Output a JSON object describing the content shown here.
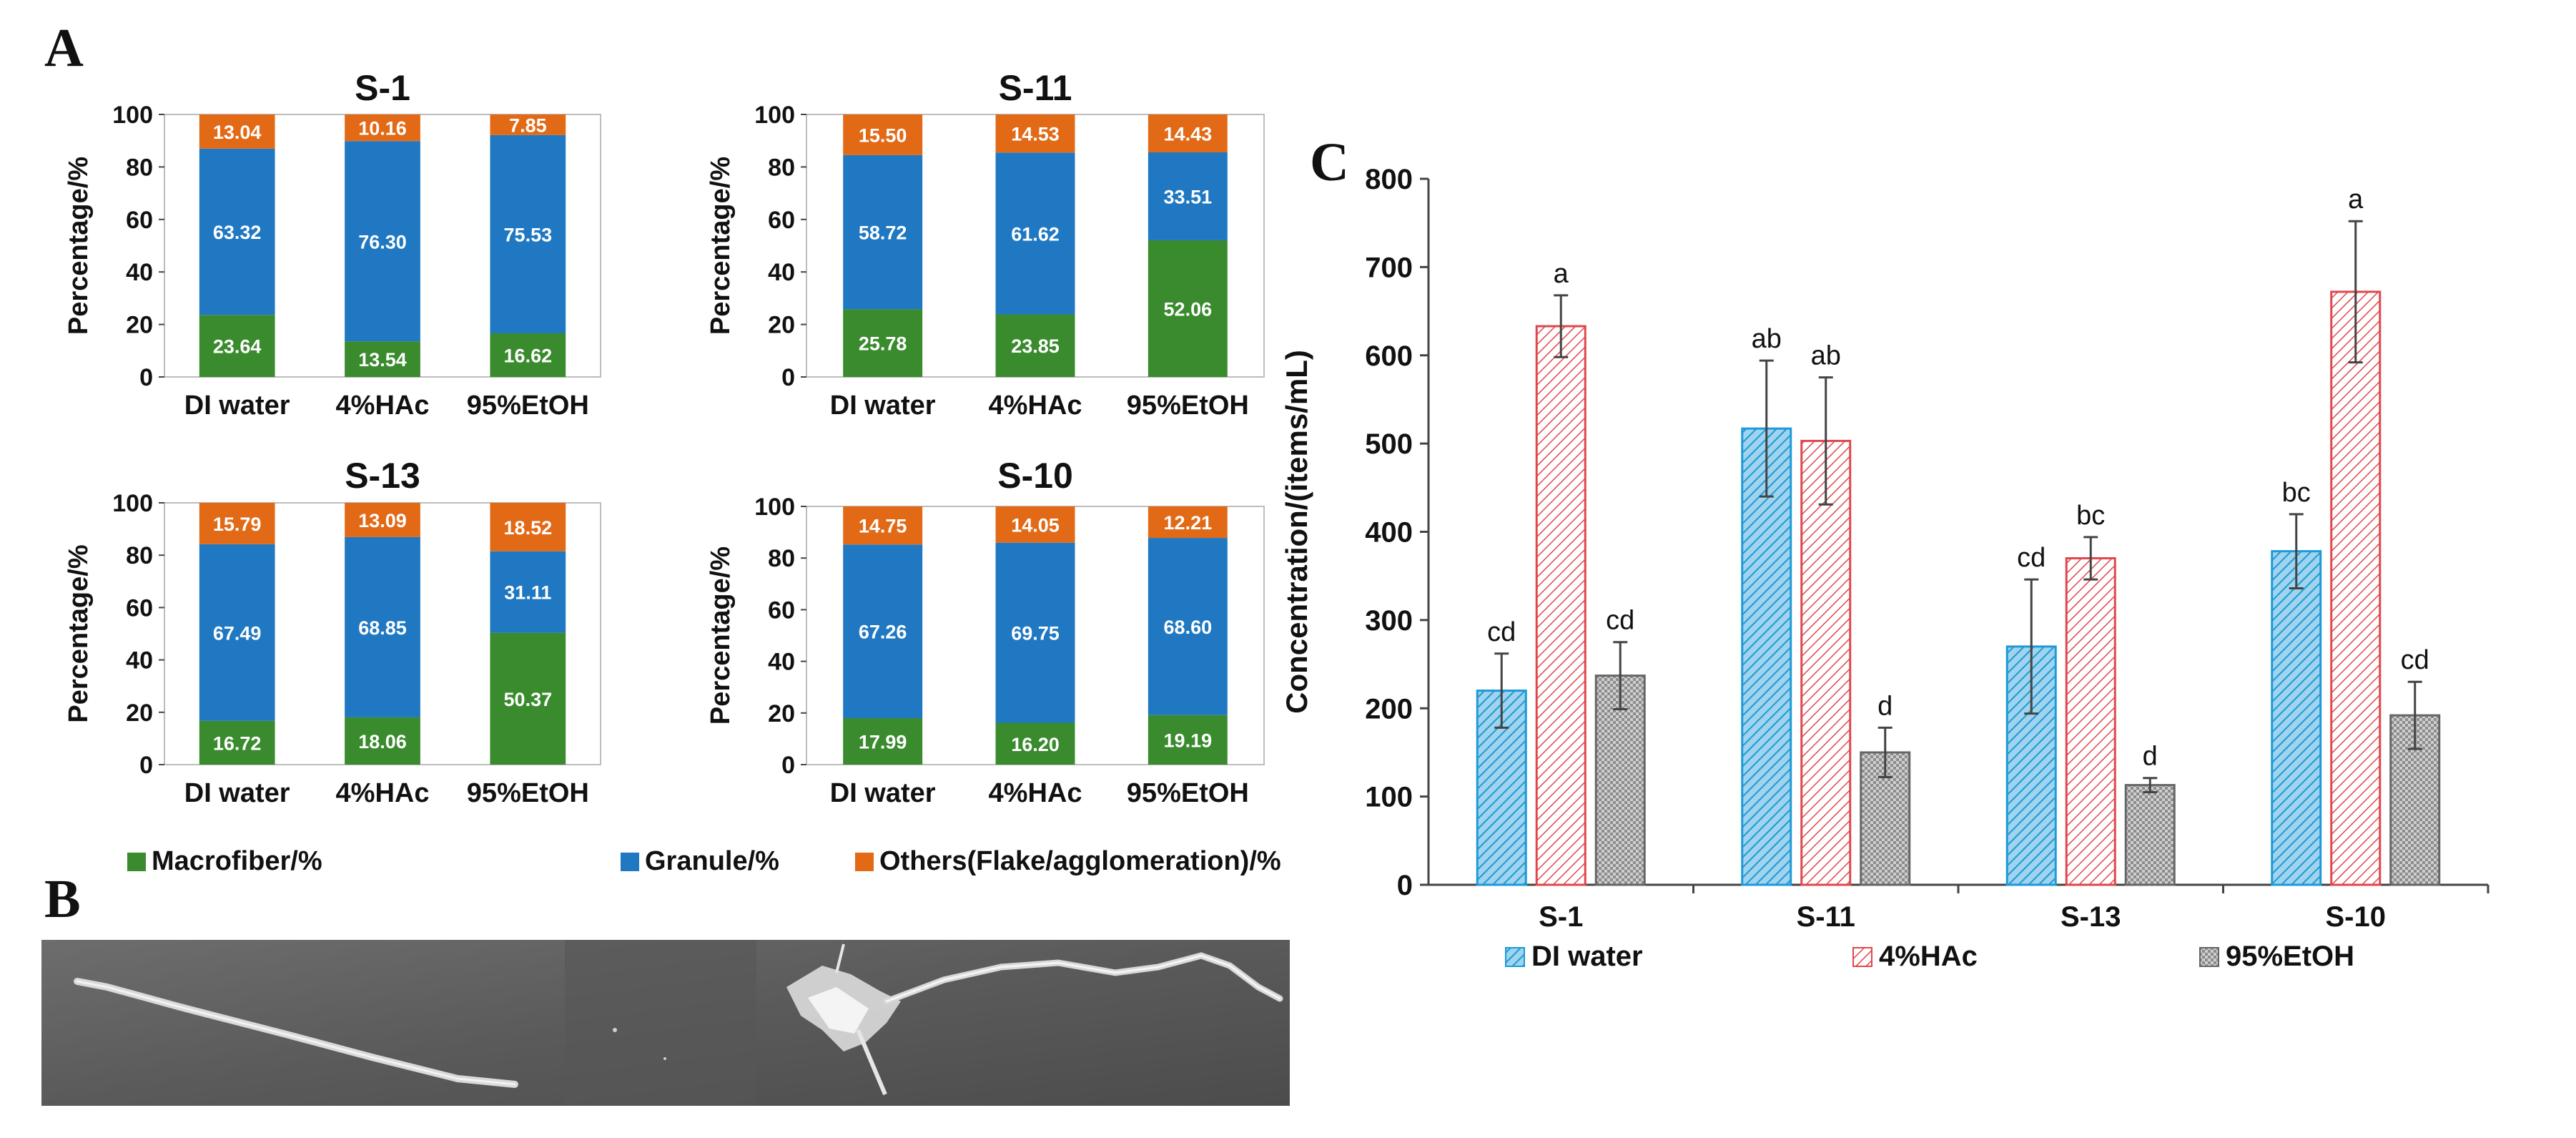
{
  "panels": {
    "a_label": "A",
    "b_label": "B",
    "c_label": "C"
  },
  "colors": {
    "macrofiber": "#3a8a2e",
    "granule": "#1f78c1",
    "others": "#e26a17",
    "di_water": "#1e9ad6",
    "hac": "#e0474c",
    "etoh": "#8c8c8c",
    "error_bar": "#444444"
  },
  "legend_a": {
    "items": [
      "Macrofiber/%",
      "Granule/%",
      "Others(Flake/agglomeration)/%"
    ]
  },
  "legend_c": {
    "items": [
      "DI water",
      "4%HAc",
      "95%EtOH"
    ]
  },
  "chart_data": [
    {
      "type": "bar",
      "stacked": true,
      "title": "S-1",
      "ylabel": "Percentage/%",
      "ylim": [
        0,
        100
      ],
      "yticks": [
        "0",
        "20",
        "40",
        "60",
        "80",
        "100"
      ],
      "categories": [
        "DI water",
        "4%HAc",
        "95%EtOH"
      ],
      "series": [
        {
          "name": "Macrofiber/%",
          "values": [
            23.64,
            13.54,
            16.62
          ],
          "labels": [
            "23.64",
            "13.54",
            "16.62"
          ]
        },
        {
          "name": "Granule/%",
          "values": [
            63.32,
            76.3,
            75.53
          ],
          "labels": [
            "63.32",
            "76.30",
            "75.53"
          ]
        },
        {
          "name": "Others(Flake/agglomeration)/%",
          "values": [
            13.04,
            10.16,
            7.85
          ],
          "labels": [
            "13.04",
            "10.16",
            "7.85"
          ]
        }
      ]
    },
    {
      "type": "bar",
      "stacked": true,
      "title": "S-11",
      "ylabel": "Percentage/%",
      "ylim": [
        0,
        100
      ],
      "yticks": [
        "0",
        "20",
        "40",
        "60",
        "80",
        "100"
      ],
      "categories": [
        "DI water",
        "4%HAc",
        "95%EtOH"
      ],
      "series": [
        {
          "name": "Macrofiber/%",
          "values": [
            25.78,
            23.85,
            52.06
          ],
          "labels": [
            "25.78",
            "23.85",
            "52.06"
          ]
        },
        {
          "name": "Granule/%",
          "values": [
            58.72,
            61.62,
            33.51
          ],
          "labels": [
            "58.72",
            "61.62",
            "33.51"
          ]
        },
        {
          "name": "Others(Flake/agglomeration)/%",
          "values": [
            15.5,
            14.53,
            14.43
          ],
          "labels": [
            "15.50",
            "14.53",
            "14.43"
          ]
        }
      ]
    },
    {
      "type": "bar",
      "stacked": true,
      "title": "S-13",
      "ylabel": "Percentage/%",
      "ylim": [
        0,
        100
      ],
      "yticks": [
        "0",
        "20",
        "40",
        "60",
        "80",
        "100"
      ],
      "categories": [
        "DI water",
        "4%HAc",
        "95%EtOH"
      ],
      "series": [
        {
          "name": "Macrofiber/%",
          "values": [
            16.72,
            18.06,
            50.37
          ],
          "labels": [
            "16.72",
            "18.06",
            "50.37"
          ]
        },
        {
          "name": "Granule/%",
          "values": [
            67.49,
            68.85,
            31.11
          ],
          "labels": [
            "67.49",
            "68.85",
            "31.11"
          ]
        },
        {
          "name": "Others(Flake/agglomeration)/%",
          "values": [
            15.79,
            13.09,
            18.52
          ],
          "labels": [
            "15.79",
            "13.09",
            "18.52"
          ]
        }
      ]
    },
    {
      "type": "bar",
      "stacked": true,
      "title": "S-10",
      "ylabel": "Percentage/%",
      "ylim": [
        0,
        100
      ],
      "yticks": [
        "0",
        "20",
        "40",
        "60",
        "80",
        "100"
      ],
      "categories": [
        "DI water",
        "4%HAc",
        "95%EtOH"
      ],
      "series": [
        {
          "name": "Macrofiber/%",
          "values": [
            17.99,
            16.2,
            19.19
          ],
          "labels": [
            "17.99",
            "16.20",
            "19.19"
          ]
        },
        {
          "name": "Granule/%",
          "values": [
            67.26,
            69.75,
            68.6
          ],
          "labels": [
            "67.26",
            "69.75",
            "68.60"
          ]
        },
        {
          "name": "Others(Flake/agglomeration)/%",
          "values": [
            14.75,
            14.05,
            12.21
          ],
          "labels": [
            "14.75",
            "14.05",
            "12.21"
          ]
        }
      ]
    },
    {
      "type": "bar",
      "title": "",
      "ylabel": "Concentration/(items/mL)",
      "ylim": [
        0,
        800
      ],
      "yticks": [
        "0",
        "100",
        "200",
        "300",
        "400",
        "500",
        "600",
        "700",
        "800"
      ],
      "categories": [
        "S-1",
        "S-11",
        "S-13",
        "S-10"
      ],
      "series": [
        {
          "name": "DI water",
          "values": [
            220,
            517,
            270,
            378
          ],
          "errors": [
            42,
            77,
            76,
            42
          ],
          "letters": [
            "cd",
            "ab",
            "cd",
            "bc"
          ]
        },
        {
          "name": "4%HAc",
          "values": [
            633,
            503,
            370,
            672
          ],
          "errors": [
            35,
            72,
            24,
            80
          ],
          "letters": [
            "a",
            "ab",
            "bc",
            "a"
          ]
        },
        {
          "name": "95%EtOH",
          "values": [
            237,
            150,
            113,
            192
          ],
          "errors": [
            38,
            28,
            8,
            38
          ],
          "letters": [
            "cd",
            "d",
            "d",
            "cd"
          ]
        }
      ]
    }
  ]
}
